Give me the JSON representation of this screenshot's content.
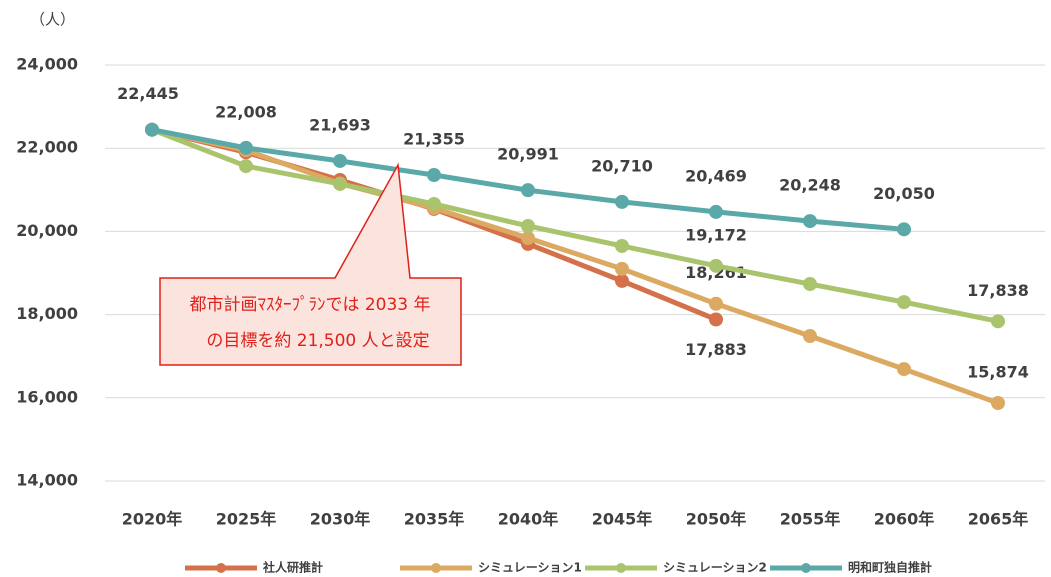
{
  "chart_data": {
    "type": "line",
    "y_unit": "（人）",
    "annotation": [
      "都市計画ﾏｽﾀｰﾌﾟﾗﾝでは 2033 年",
      "の目標を約 21,500 人と設定"
    ],
    "categories": [
      "2020年",
      "2025年",
      "2030年",
      "2035年",
      "2040年",
      "2045年",
      "2050年",
      "2055年",
      "2060年",
      "2065年"
    ],
    "ylim": [
      14000,
      24000
    ],
    "yticks": [
      {
        "value": 14000,
        "label": "14,000"
      },
      {
        "value": 16000,
        "label": "16,000"
      },
      {
        "value": 18000,
        "label": "18,000"
      },
      {
        "value": 20000,
        "label": "20,000"
      },
      {
        "value": 22000,
        "label": "22,000"
      },
      {
        "value": 24000,
        "label": "24,000"
      }
    ],
    "grid": true,
    "legend": "bottom",
    "series": [
      {
        "name": "社人研推計",
        "color": "#d4704a",
        "values": [
          22445,
          21900,
          21235,
          20540,
          19700,
          18810,
          17883,
          null,
          null,
          null
        ],
        "value_labels": [
          null,
          null,
          null,
          null,
          null,
          null,
          "17,883",
          null,
          null,
          null
        ]
      },
      {
        "name": "シミュレーション1",
        "color": "#dba961",
        "values": [
          22445,
          21950,
          21150,
          20560,
          19840,
          19100,
          18261,
          17485,
          16690,
          15874
        ],
        "value_labels": [
          null,
          null,
          null,
          null,
          null,
          null,
          "18,261",
          null,
          null,
          "15,874"
        ]
      },
      {
        "name": "シミュレーション2",
        "color": "#a9c46c",
        "values": [
          22445,
          21570,
          21140,
          20660,
          20130,
          19650,
          19172,
          18735,
          18300,
          17838
        ],
        "value_labels": [
          null,
          null,
          null,
          null,
          null,
          null,
          "19,172",
          null,
          null,
          "17,838"
        ]
      },
      {
        "name": "明和町独自推計",
        "color": "#5aa8a8",
        "values": [
          22445,
          22008,
          21693,
          21355,
          20991,
          20710,
          20469,
          20248,
          20050,
          null
        ],
        "value_labels": [
          "22,445",
          "22,008",
          "21,693",
          "21,355",
          "20,991",
          "20,710",
          "20,469",
          "20,248",
          "20,050",
          null
        ]
      }
    ]
  }
}
